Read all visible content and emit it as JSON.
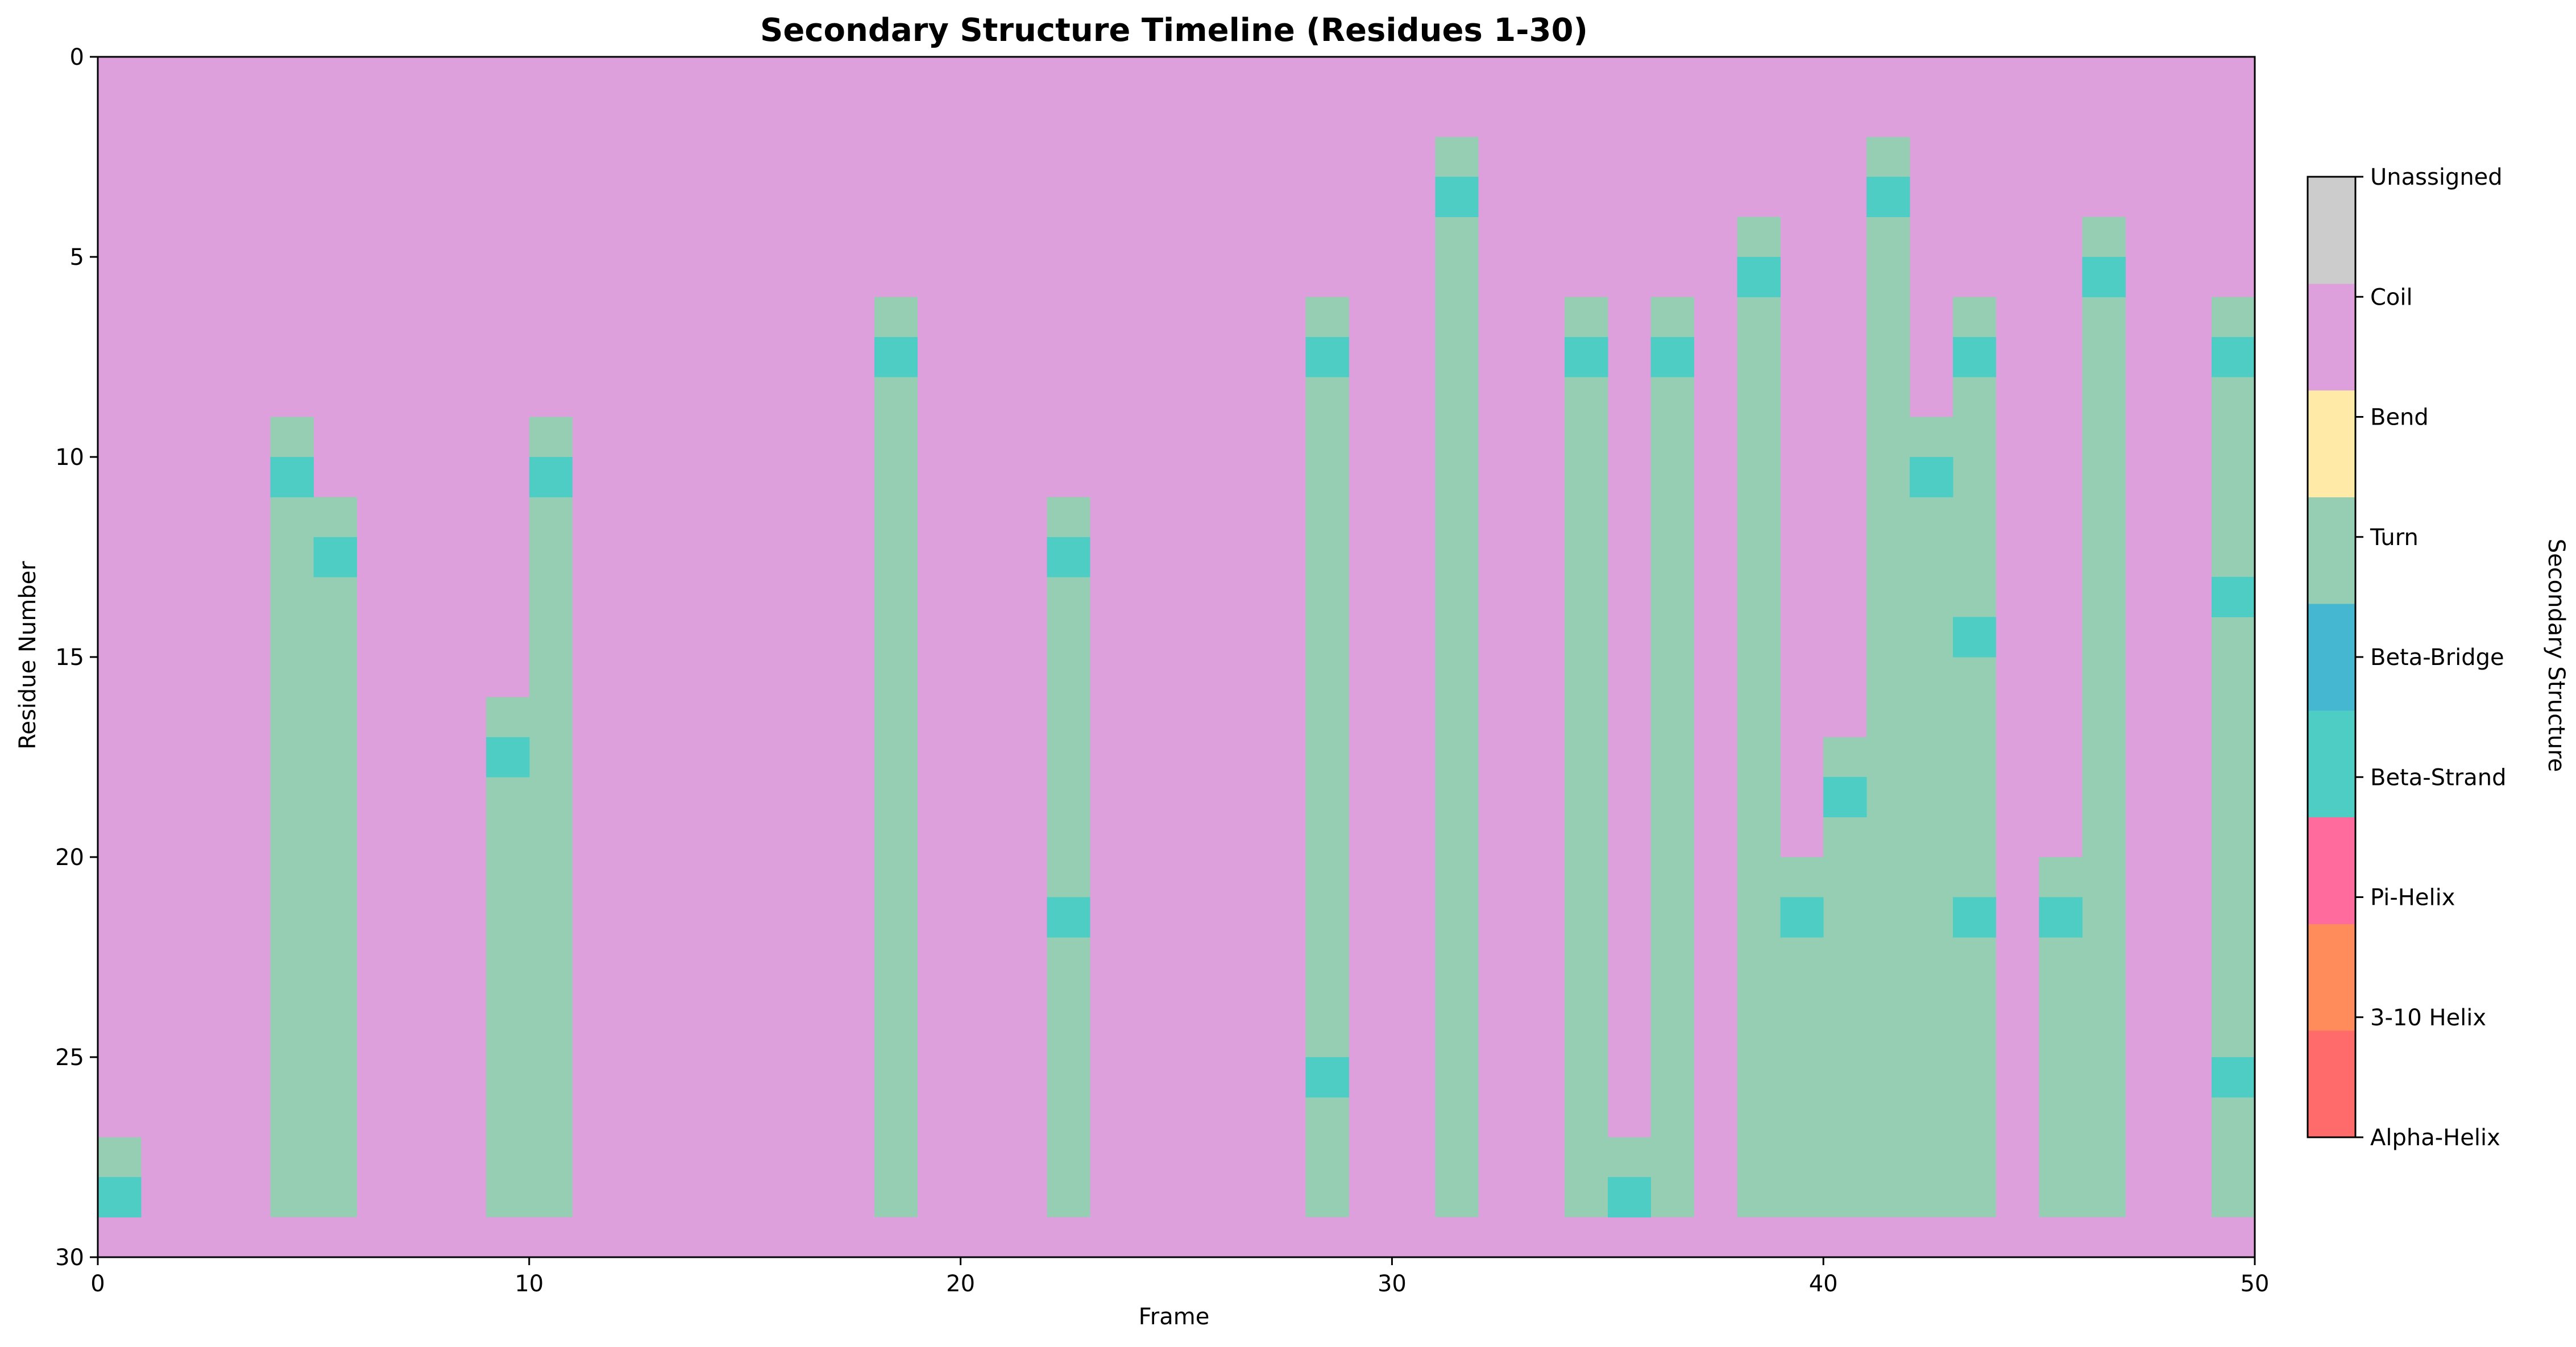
{
  "chart_data": {
    "type": "heatmap",
    "title": "Secondary Structure Timeline (Residues 1-30)",
    "xlabel": "Frame",
    "ylabel": "Residue Number",
    "xlim": [
      0,
      50
    ],
    "ylim": [
      30,
      0
    ],
    "x_ticks": [
      "0",
      "10",
      "20",
      "30",
      "40",
      "50"
    ],
    "y_ticks": [
      "0",
      "5",
      "10",
      "15",
      "20",
      "25",
      "30"
    ],
    "colorbar": {
      "label": "Secondary Structure",
      "categories": [
        {
          "name": "Alpha-Helix",
          "color": "#ff6b6b"
        },
        {
          "name": "3-10 Helix",
          "color": "#ff8c5a"
        },
        {
          "name": "Pi-Helix",
          "color": "#ff6b9d"
        },
        {
          "name": "Beta-Strand",
          "color": "#4ecdc4"
        },
        {
          "name": "Beta-Bridge",
          "color": "#45b7d1"
        },
        {
          "name": "Turn",
          "color": "#96ceb4"
        },
        {
          "name": "Bend",
          "color": "#ffeaa7"
        },
        {
          "name": "Coil",
          "color": "#dda0dd"
        },
        {
          "name": "Unassigned",
          "color": "#cccccc"
        }
      ]
    },
    "background_state": "Coil",
    "frames": 50,
    "residues": 30,
    "turn_columns": [
      {
        "frame": 0,
        "start": 27,
        "end": 29
      },
      {
        "frame": 4,
        "start": 9,
        "end": 29
      },
      {
        "frame": 5,
        "start": 11,
        "end": 29
      },
      {
        "frame": 9,
        "start": 16,
        "end": 29
      },
      {
        "frame": 10,
        "start": 9,
        "end": 29
      },
      {
        "frame": 18,
        "start": 6,
        "end": 29
      },
      {
        "frame": 22,
        "start": 11,
        "end": 29
      },
      {
        "frame": 28,
        "start": 6,
        "end": 29
      },
      {
        "frame": 31,
        "start": 2,
        "end": 29
      },
      {
        "frame": 34,
        "start": 6,
        "end": 29
      },
      {
        "frame": 35,
        "start": 27,
        "end": 29
      },
      {
        "frame": 36,
        "start": 6,
        "end": 29
      },
      {
        "frame": 38,
        "start": 4,
        "end": 29
      },
      {
        "frame": 39,
        "start": 20,
        "end": 29
      },
      {
        "frame": 40,
        "start": 17,
        "end": 29
      },
      {
        "frame": 41,
        "start": 2,
        "end": 29
      },
      {
        "frame": 42,
        "start": 9,
        "end": 29
      },
      {
        "frame": 43,
        "start": 6,
        "end": 29
      },
      {
        "frame": 45,
        "start": 20,
        "end": 29
      },
      {
        "frame": 46,
        "start": 4,
        "end": 29
      },
      {
        "frame": 49,
        "start": 6,
        "end": 29
      }
    ],
    "beta_strand_cells": [
      {
        "frame": 0,
        "residue": 28
      },
      {
        "frame": 4,
        "residue": 10
      },
      {
        "frame": 5,
        "residue": 12
      },
      {
        "frame": 9,
        "residue": 17
      },
      {
        "frame": 10,
        "residue": 10
      },
      {
        "frame": 18,
        "residue": 7
      },
      {
        "frame": 22,
        "residue": 12
      },
      {
        "frame": 22,
        "residue": 21
      },
      {
        "frame": 28,
        "residue": 7
      },
      {
        "frame": 28,
        "residue": 25
      },
      {
        "frame": 31,
        "residue": 3
      },
      {
        "frame": 34,
        "residue": 7
      },
      {
        "frame": 35,
        "residue": 28
      },
      {
        "frame": 36,
        "residue": 7
      },
      {
        "frame": 38,
        "residue": 5
      },
      {
        "frame": 39,
        "residue": 21
      },
      {
        "frame": 40,
        "residue": 18
      },
      {
        "frame": 41,
        "residue": 3
      },
      {
        "frame": 42,
        "residue": 10
      },
      {
        "frame": 43,
        "residue": 7
      },
      {
        "frame": 43,
        "residue": 14
      },
      {
        "frame": 43,
        "residue": 21
      },
      {
        "frame": 45,
        "residue": 21
      },
      {
        "frame": 46,
        "residue": 5
      },
      {
        "frame": 49,
        "residue": 7
      },
      {
        "frame": 49,
        "residue": 13
      },
      {
        "frame": 49,
        "residue": 25
      }
    ]
  }
}
